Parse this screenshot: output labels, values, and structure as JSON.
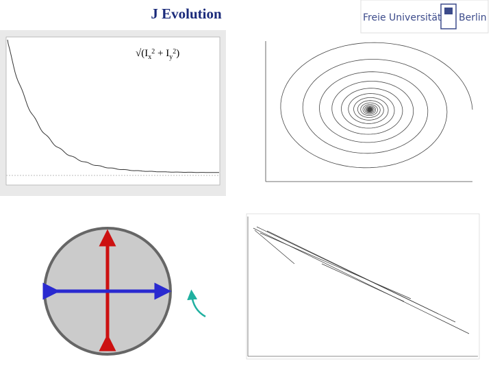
{
  "header": {
    "title": "J Evolution",
    "logo": {
      "left": "Freie Universität",
      "right": "Berlin"
    }
  },
  "plot_label": {
    "parts": [
      "√(I",
      "x",
      "2",
      " + I",
      "y",
      "2",
      ")"
    ]
  }
}
